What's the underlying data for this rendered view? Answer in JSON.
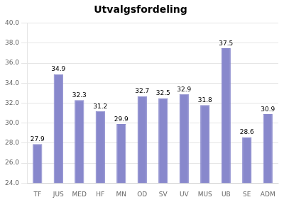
{
  "chart_data": {
    "type": "bar",
    "title": "Utvalgsfordeling",
    "categories": [
      "TF",
      "JUS",
      "MED",
      "HF",
      "MN",
      "OD",
      "SV",
      "UV",
      "MUS",
      "UB",
      "SE",
      "ADM"
    ],
    "values": [
      27.9,
      34.9,
      32.3,
      31.2,
      29.9,
      32.7,
      32.5,
      32.9,
      31.8,
      37.5,
      28.6,
      30.9
    ],
    "color": "#8888cc",
    "ylim": [
      24,
      40
    ],
    "yticks": [
      {
        "value": 24,
        "label": "24.0"
      },
      {
        "value": 26,
        "label": "26.0"
      },
      {
        "value": 28,
        "label": "28.0"
      },
      {
        "value": 30,
        "label": "30.0"
      },
      {
        "value": 32,
        "label": "32.0"
      },
      {
        "value": 34,
        "label": "34.0"
      },
      {
        "value": 36,
        "label": "36.0"
      },
      {
        "value": 38,
        "label": "38.0"
      },
      {
        "value": 40,
        "label": "40.0"
      }
    ],
    "grid": true,
    "data_labels": true
  }
}
